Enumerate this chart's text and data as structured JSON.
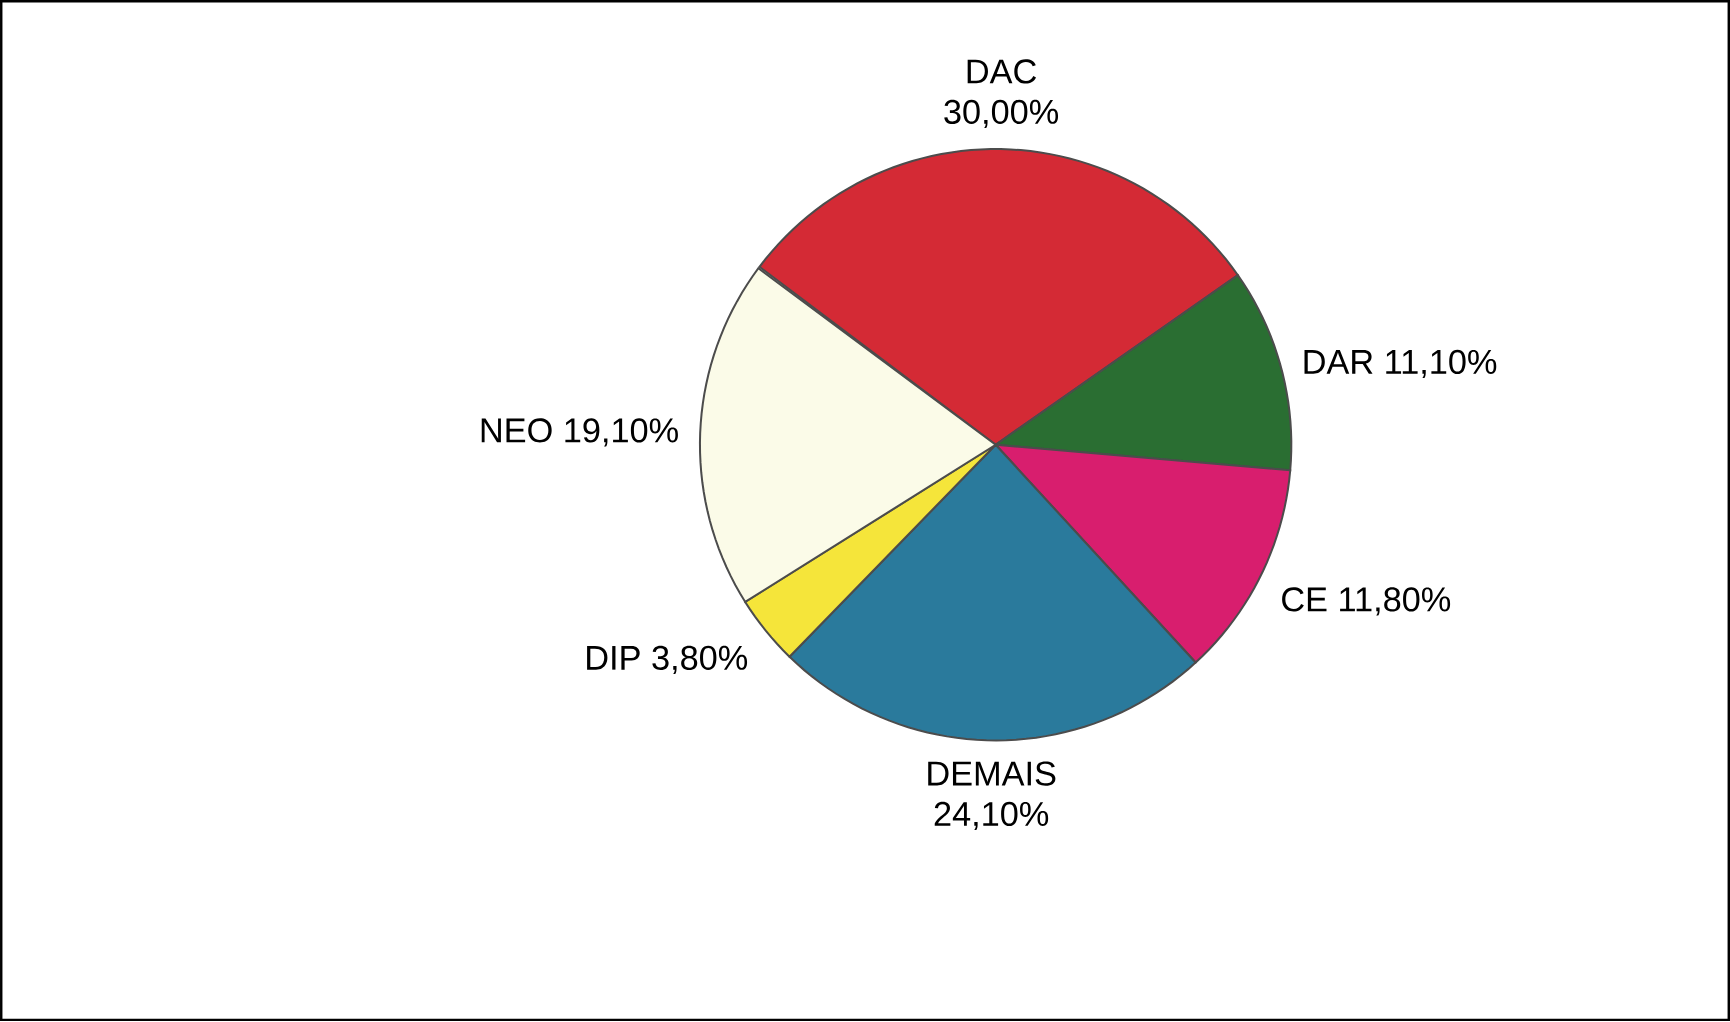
{
  "chart_data": {
    "type": "pie",
    "categories": [
      "DAC",
      "DAR",
      "CE",
      "DEMAIS",
      "DIP",
      "NEO"
    ],
    "values": [
      30.0,
      11.1,
      11.8,
      24.1,
      3.8,
      19.1
    ],
    "value_labels": [
      "30,00%",
      "11,10%",
      "11,80%",
      "24,10%",
      "3,80%",
      "19,10%"
    ],
    "colors": [
      "#d42a35",
      "#2a6e32",
      "#d81e6e",
      "#2a7a9c",
      "#f5e53a",
      "#fbfbe8"
    ]
  }
}
